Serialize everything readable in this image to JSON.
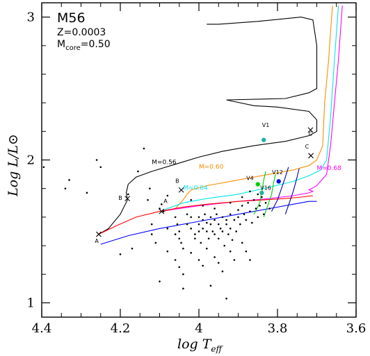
{
  "chart_data": {
    "type": "scatter",
    "title": "M56",
    "subtitle_z": "Z=0.0003",
    "subtitle_mcore": "Mcore=0.50",
    "mcore_main": "M",
    "mcore_sub": "core",
    "mcore_value": "=0.50",
    "xlabel_main": "log T",
    "xlabel_sub": "eff",
    "ylabel": "Log L/L⊙",
    "xlim": [
      4.4,
      3.6
    ],
    "ylim": [
      0.9,
      3.1
    ],
    "x_ticks": [
      "4.4",
      "4.2",
      "4",
      "3.8",
      "3.6"
    ],
    "y_ticks": [
      "1",
      "2",
      "3"
    ],
    "x_tick_values": [
      4.4,
      4.2,
      4.0,
      3.8,
      3.6
    ],
    "y_tick_values": [
      1,
      2,
      3
    ],
    "grid": false,
    "tracks": [
      {
        "name": "M=0.56",
        "color": "#000000",
        "points": [
          [
            4.255,
            1.48
          ],
          [
            4.23,
            1.52
          ],
          [
            4.2,
            1.62
          ],
          [
            4.182,
            1.72
          ],
          [
            4.185,
            1.77
          ],
          [
            4.18,
            1.83
          ],
          [
            4.16,
            1.88
          ],
          [
            4.12,
            1.92
          ],
          [
            4.06,
            1.97
          ],
          [
            4.0,
            2.02
          ],
          [
            3.94,
            2.06
          ],
          [
            3.86,
            2.1
          ],
          [
            3.78,
            2.13
          ],
          [
            3.72,
            2.17
          ],
          [
            3.7,
            2.2
          ],
          [
            3.7,
            2.28
          ],
          [
            3.72,
            2.34
          ],
          [
            3.8,
            2.37
          ],
          [
            3.86,
            2.38
          ],
          [
            3.93,
            2.42
          ],
          [
            3.78,
            2.43
          ],
          [
            3.72,
            2.47
          ],
          [
            3.7,
            2.5
          ],
          [
            3.7,
            2.6
          ],
          [
            3.7,
            2.8
          ],
          [
            3.71,
            2.98
          ],
          [
            3.74,
            3.0
          ],
          [
            3.85,
            2.97
          ],
          [
            3.95,
            2.95
          ],
          [
            3.98,
            2.95
          ]
        ]
      },
      {
        "name": "M=0.60",
        "color": "#ff8c00",
        "points": [
          [
            4.09,
            1.64
          ],
          [
            4.06,
            1.66
          ],
          [
            4.04,
            1.72
          ],
          [
            4.03,
            1.76
          ],
          [
            4.02,
            1.79
          ],
          [
            3.98,
            1.82
          ],
          [
            3.9,
            1.86
          ],
          [
            3.82,
            1.9
          ],
          [
            3.76,
            1.93
          ],
          [
            3.72,
            1.96
          ],
          [
            3.7,
            2.0
          ],
          [
            3.685,
            2.1
          ],
          [
            3.68,
            2.4
          ],
          [
            3.67,
            2.7
          ],
          [
            3.665,
            2.9
          ],
          [
            3.66,
            3.08
          ]
        ]
      },
      {
        "name": "M=0.64",
        "color": "#00e5ee",
        "points": [
          [
            4.09,
            1.65
          ],
          [
            4.04,
            1.7
          ],
          [
            3.98,
            1.73
          ],
          [
            3.9,
            1.76
          ],
          [
            3.82,
            1.81
          ],
          [
            3.76,
            1.85
          ],
          [
            3.72,
            1.89
          ],
          [
            3.69,
            1.93
          ],
          [
            3.675,
            2.0
          ],
          [
            3.665,
            2.3
          ],
          [
            3.655,
            2.7
          ],
          [
            3.645,
            3.08
          ]
        ]
      },
      {
        "name": "M=0.68",
        "color": "#ff00ff",
        "points": [
          [
            4.1,
            1.64
          ],
          [
            4.0,
            1.68
          ],
          [
            3.9,
            1.71
          ],
          [
            3.82,
            1.73
          ],
          [
            3.76,
            1.75
          ],
          [
            3.72,
            1.77
          ],
          [
            3.71,
            1.78
          ],
          [
            3.72,
            1.79
          ],
          [
            3.7,
            1.82
          ],
          [
            3.675,
            1.9
          ],
          [
            3.665,
            2.1
          ],
          [
            3.655,
            2.4
          ],
          [
            3.645,
            2.7
          ],
          [
            3.635,
            3.08
          ]
        ]
      },
      {
        "name": "",
        "color": "#ff0000",
        "points": [
          [
            4.255,
            1.48
          ],
          [
            4.21,
            1.54
          ],
          [
            4.16,
            1.6
          ],
          [
            4.1,
            1.64
          ],
          [
            4.04,
            1.67
          ],
          [
            3.98,
            1.69
          ],
          [
            3.9,
            1.71
          ],
          [
            3.84,
            1.72
          ],
          [
            3.78,
            1.73
          ],
          [
            3.74,
            1.74
          ],
          [
            3.71,
            1.75
          ]
        ]
      },
      {
        "name": "",
        "color": "#0000ff",
        "points": [
          [
            4.25,
            1.41
          ],
          [
            4.18,
            1.47
          ],
          [
            4.1,
            1.52
          ],
          [
            4.0,
            1.57
          ],
          [
            3.9,
            1.62
          ],
          [
            3.82,
            1.66
          ],
          [
            3.76,
            1.69
          ],
          [
            3.72,
            1.71
          ],
          [
            3.7,
            1.71
          ]
        ]
      },
      {
        "name": "",
        "color": "#00cc00",
        "points": [
          [
            3.86,
            1.62
          ],
          [
            3.845,
            1.7
          ],
          [
            3.84,
            1.78
          ],
          [
            3.835,
            1.86
          ],
          [
            3.83,
            1.92
          ]
        ]
      },
      {
        "name": "",
        "color": "#00cc00",
        "points": [
          [
            3.835,
            1.6
          ],
          [
            3.825,
            1.68
          ],
          [
            3.815,
            1.76
          ],
          [
            3.81,
            1.84
          ],
          [
            3.805,
            1.9
          ]
        ]
      },
      {
        "name": "",
        "color": "#0000aa",
        "points": [
          [
            3.78,
            1.62
          ],
          [
            3.77,
            1.7
          ],
          [
            3.76,
            1.78
          ],
          [
            3.752,
            1.86
          ],
          [
            3.745,
            1.94
          ]
        ]
      },
      {
        "name": "",
        "color": "#0000aa",
        "points": [
          [
            3.815,
            1.64
          ],
          [
            3.8,
            1.72
          ],
          [
            3.79,
            1.8
          ],
          [
            3.78,
            1.88
          ],
          [
            3.772,
            1.95
          ]
        ]
      }
    ],
    "mass_labels": [
      {
        "text": "M=0.56",
        "x": 4.12,
        "y": 1.97,
        "color": "#000000"
      },
      {
        "text": "M=0.60",
        "x": 4.0,
        "y": 1.94,
        "color": "#ff8c00"
      },
      {
        "text": "M=0.64",
        "x": 4.04,
        "y": 1.79,
        "color": "#00e5ee"
      },
      {
        "text": "M=0.68",
        "x": 3.7,
        "y": 1.93,
        "color": "#ff00ff"
      }
    ],
    "markers": [
      {
        "label": "A",
        "x": 4.255,
        "y": 1.48,
        "lx": 4.26,
        "ly": 1.42
      },
      {
        "label": "B",
        "x": 4.182,
        "y": 1.73,
        "lx": 4.2,
        "ly": 1.72
      },
      {
        "label": "A",
        "x": 4.095,
        "y": 1.64,
        "lx": 4.085,
        "ly": 1.7
      },
      {
        "label": "B",
        "x": 4.045,
        "y": 1.79,
        "lx": 4.055,
        "ly": 1.84
      },
      {
        "label": "C",
        "x": 3.716,
        "y": 2.21,
        "lx": 3.716,
        "ly": 2.17
      },
      {
        "label": "C",
        "x": 3.715,
        "y": 2.03,
        "lx": 3.725,
        "ly": 2.08
      }
    ],
    "variables": [
      {
        "label": "V1",
        "x": 3.835,
        "y": 2.14,
        "lx": 3.83,
        "ly": 2.23,
        "color": "#20b2aa"
      },
      {
        "label": "V4",
        "x": 3.85,
        "y": 1.83,
        "lx": 3.87,
        "ly": 1.86,
        "color": "#00cc00"
      },
      {
        "label": "V16",
        "x": 3.84,
        "y": 1.77,
        "lx": 3.83,
        "ly": 1.79,
        "color": "#20b2aa"
      },
      {
        "label": "V12",
        "x": 3.797,
        "y": 1.85,
        "lx": 3.8,
        "ly": 1.9,
        "color": "#0000ff"
      }
    ],
    "stars": [
      [
        4.395,
        1.95
      ],
      [
        4.34,
        1.8
      ],
      [
        4.33,
        1.86
      ],
      [
        4.285,
        1.77
      ],
      [
        4.26,
        2.0
      ],
      [
        4.25,
        1.95
      ],
      [
        4.18,
        1.76
      ],
      [
        4.155,
        1.92
      ],
      [
        4.14,
        2.08
      ],
      [
        4.13,
        1.72
      ],
      [
        4.125,
        1.8
      ],
      [
        4.1,
        1.66
      ],
      [
        4.095,
        1.69
      ],
      [
        4.09,
        1.64
      ],
      [
        4.08,
        1.75
      ],
      [
        4.06,
        1.6
      ],
      [
        4.055,
        1.55
      ],
      [
        4.05,
        1.5
      ],
      [
        4.05,
        1.45
      ],
      [
        4.045,
        1.42
      ],
      [
        4.04,
        1.38
      ],
      [
        4.03,
        1.62
      ],
      [
        4.03,
        1.55
      ],
      [
        4.02,
        1.6
      ],
      [
        4.02,
        1.52
      ],
      [
        4.01,
        1.48
      ],
      [
        4.01,
        1.45
      ],
      [
        4.0,
        1.6
      ],
      [
        4.0,
        1.55
      ],
      [
        4.0,
        1.5
      ],
      [
        3.995,
        1.42
      ],
      [
        3.99,
        1.58
      ],
      [
        3.99,
        1.52
      ],
      [
        3.985,
        1.62
      ],
      [
        3.98,
        1.56
      ],
      [
        3.98,
        1.5
      ],
      [
        3.975,
        1.45
      ],
      [
        3.97,
        1.6
      ],
      [
        3.97,
        1.55
      ],
      [
        3.965,
        1.5
      ],
      [
        3.96,
        1.58
      ],
      [
        3.96,
        1.48
      ],
      [
        3.955,
        1.62
      ],
      [
        3.95,
        1.55
      ],
      [
        3.95,
        1.45
      ],
      [
        3.945,
        1.52
      ],
      [
        3.94,
        1.6
      ],
      [
        3.94,
        1.5
      ],
      [
        3.935,
        1.4
      ],
      [
        3.93,
        1.58
      ],
      [
        3.93,
        1.55
      ],
      [
        3.925,
        1.48
      ],
      [
        3.92,
        1.62
      ],
      [
        3.92,
        1.52
      ],
      [
        3.915,
        1.44
      ],
      [
        3.91,
        1.58
      ],
      [
        3.905,
        1.5
      ],
      [
        3.9,
        1.65
      ],
      [
        3.9,
        1.6
      ],
      [
        3.895,
        1.55
      ],
      [
        3.89,
        1.68
      ],
      [
        3.885,
        1.62
      ],
      [
        3.88,
        1.58
      ],
      [
        3.875,
        1.7
      ],
      [
        3.87,
        1.64
      ],
      [
        3.865,
        1.56
      ],
      [
        3.86,
        1.72
      ],
      [
        3.855,
        1.66
      ],
      [
        3.85,
        1.6
      ],
      [
        3.845,
        1.68
      ],
      [
        3.84,
        1.74
      ],
      [
        3.835,
        1.62
      ],
      [
        3.83,
        1.7
      ],
      [
        3.82,
        1.66
      ],
      [
        4.12,
        1.48
      ],
      [
        4.11,
        1.42
      ],
      [
        4.08,
        1.36
      ],
      [
        4.06,
        1.3
      ],
      [
        4.05,
        1.25
      ],
      [
        4.04,
        1.2
      ],
      [
        4.02,
        1.35
      ],
      [
        4.0,
        1.3
      ],
      [
        3.99,
        1.26
      ],
      [
        3.98,
        1.38
      ],
      [
        3.96,
        1.32
      ],
      [
        3.95,
        1.28
      ],
      [
        3.94,
        1.22
      ],
      [
        3.92,
        1.36
      ],
      [
        3.91,
        1.3
      ],
      [
        3.89,
        1.42
      ],
      [
        3.88,
        1.36
      ],
      [
        3.87,
        1.3
      ],
      [
        4.1,
        1.15
      ],
      [
        4.04,
        1.1
      ],
      [
        3.97,
        1.12
      ],
      [
        3.93,
        1.03
      ],
      [
        4.2,
        1.34
      ],
      [
        4.17,
        1.38
      ],
      [
        4.12,
        1.55
      ],
      [
        4.08,
        1.52
      ],
      [
        4.06,
        1.48
      ],
      [
        4.02,
        1.72
      ],
      [
        3.99,
        1.68
      ],
      [
        3.96,
        1.66
      ],
      [
        3.92,
        1.7
      ],
      [
        3.89,
        1.74
      ],
      [
        3.87,
        1.78
      ],
      [
        3.85,
        1.76
      ]
    ]
  }
}
